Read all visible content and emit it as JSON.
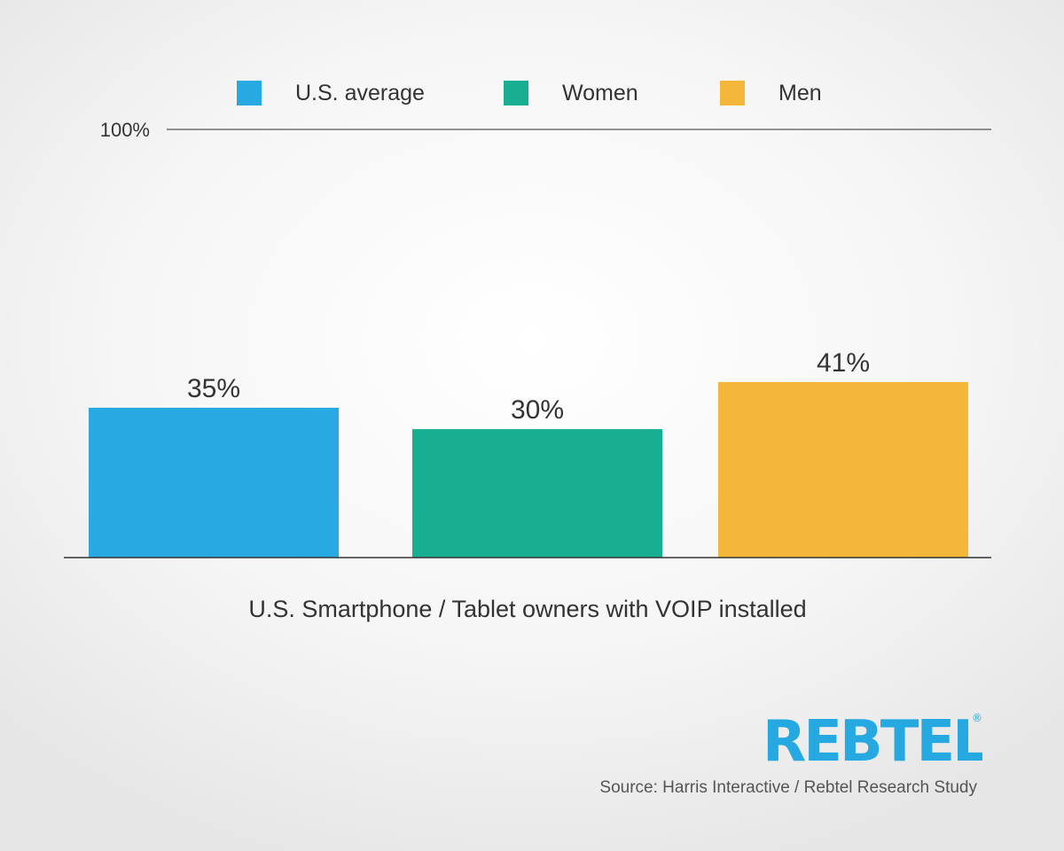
{
  "chart_data": {
    "type": "bar",
    "categories": [
      "U.S. average",
      "Women",
      "Men"
    ],
    "values": [
      35,
      30,
      41
    ],
    "value_labels": [
      "35%",
      "30%",
      "41%"
    ],
    "colors": [
      "#29a9e1",
      "#17ae91",
      "#f4b73a"
    ],
    "ylim": [
      0,
      100
    ],
    "y_tick_label": "100%",
    "legend": [
      "U.S. average",
      "Women",
      "Men"
    ],
    "legend_position": "top",
    "xlabel": "U.S. Smartphone / Tablet owners with VOIP installed"
  },
  "logo": {
    "text": "REBTEL",
    "mark": "®"
  },
  "source": "Source: Harris Interactive / Rebtel Research Study"
}
